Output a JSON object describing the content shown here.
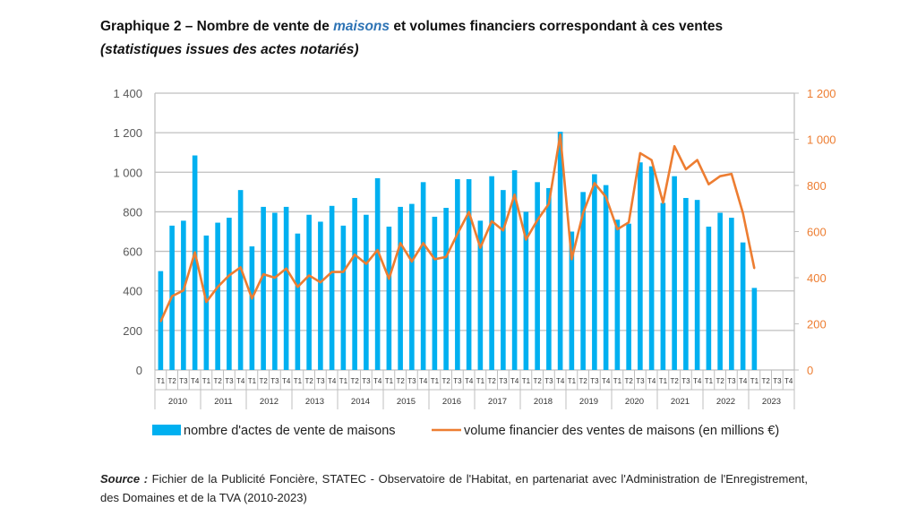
{
  "title": {
    "prefix": "Graphique 2 – Nombre de vente de ",
    "highlight": "maisons",
    "suffix": " et volumes financiers correspondant à ces ventes",
    "subtitle": "(statistiques issues des actes notariés)"
  },
  "source": {
    "label": "Source :",
    "text": " Fichier de la Publicité Foncière, STATEC - Observatoire de l'Habitat, en partenariat avec l'Administration de l'Enregistrement, des Domaines et de la TVA (2010-2023)"
  },
  "chart_data": {
    "type": "bar+line",
    "years": [
      "2010",
      "2011",
      "2012",
      "2013",
      "2014",
      "2015",
      "2016",
      "2017",
      "2018",
      "2019",
      "2020",
      "2021",
      "2022",
      "2023"
    ],
    "quarters": [
      "T1",
      "T2",
      "T3",
      "T4"
    ],
    "ylim_left": [
      0,
      1400
    ],
    "yticks_left": [
      "0",
      "200",
      "400",
      "600",
      "800",
      "1 000",
      "1 200",
      "1 400"
    ],
    "ylim_right": [
      0,
      1200
    ],
    "yticks_right": [
      "0",
      "200",
      "400",
      "600",
      "800",
      "1 000",
      "1 200"
    ],
    "colors": {
      "bars": "#00b0f0",
      "line": "#ed7d31"
    },
    "series": [
      {
        "name": "nombre d'actes de vente de maisons",
        "type": "bar",
        "axis": "left",
        "values": [
          500,
          730,
          755,
          1085,
          680,
          745,
          770,
          910,
          625,
          825,
          795,
          825,
          690,
          785,
          750,
          830,
          730,
          870,
          785,
          970,
          725,
          825,
          840,
          950,
          775,
          820,
          965,
          965,
          755,
          980,
          910,
          1010,
          800,
          950,
          920,
          1205,
          700,
          900,
          990,
          935,
          760,
          740,
          1050,
          1030,
          845,
          980,
          870,
          860,
          725,
          795,
          770,
          645,
          415
        ]
      },
      {
        "name": "volume financier des ventes de maisons (en millions €)",
        "type": "line",
        "axis": "right",
        "values": [
          210,
          320,
          345,
          510,
          295,
          360,
          410,
          445,
          310,
          415,
          400,
          440,
          360,
          410,
          380,
          425,
          425,
          500,
          460,
          520,
          395,
          550,
          470,
          550,
          480,
          490,
          590,
          685,
          530,
          645,
          605,
          760,
          565,
          650,
          720,
          1020,
          480,
          680,
          810,
          750,
          610,
          640,
          940,
          910,
          725,
          970,
          870,
          910,
          805,
          840,
          850,
          680,
          440
        ]
      }
    ],
    "legend": "bottom"
  }
}
